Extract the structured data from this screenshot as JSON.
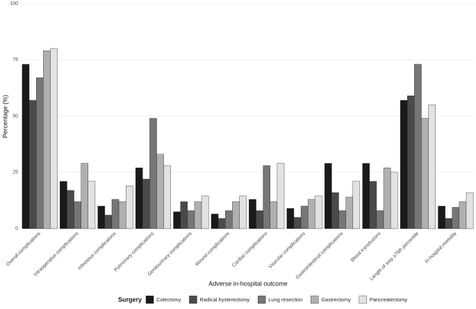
{
  "chart_data": {
    "type": "bar",
    "x_label": "Adverse in-hospital outcome",
    "y_label": "Percentage (%)",
    "categories": [
      "Overall complications",
      "Intraoperative complications",
      "Infectious complications",
      "Pulmonary complications",
      "Genitourinary complications",
      "Wound complications",
      "Cardiac complications",
      "Vascular complications",
      "Gastrointestinal complications",
      "Blood transfusions",
      "Length of stay ≥75th percentile",
      "In-hospital mortality"
    ],
    "series": [
      {
        "name": "Colectomy",
        "color": "#1a1a1a",
        "values": [
          73,
          21,
          10,
          27,
          7.5,
          6.5,
          13,
          9,
          29,
          29,
          57,
          10
        ]
      },
      {
        "name": "Radical hysterectomy",
        "color": "#4a4a4a",
        "values": [
          57,
          17,
          6,
          22,
          12,
          4.5,
          8,
          5,
          16,
          21,
          59,
          4.5
        ]
      },
      {
        "name": "Lung resection",
        "color": "#767676",
        "values": [
          67,
          12,
          13,
          49,
          8,
          8,
          28,
          10,
          8,
          8,
          73,
          9.5
        ]
      },
      {
        "name": "Gastrectomy",
        "color": "#b0b0b0",
        "values": [
          79,
          29,
          12,
          33,
          12,
          12,
          12,
          13,
          14,
          27,
          49,
          12
        ]
      },
      {
        "name": "Pancreatectomy",
        "color": "#e2e2e2",
        "values": [
          80,
          21,
          19,
          28,
          14.5,
          14.5,
          29,
          14.5,
          21,
          25,
          55,
          16
        ]
      }
    ],
    "ylim": [
      0,
      100
    ],
    "yticks": [
      0,
      25,
      50,
      75,
      100
    ],
    "grid": true,
    "legend_title": "Surgery",
    "legend_position": "bottom"
  }
}
